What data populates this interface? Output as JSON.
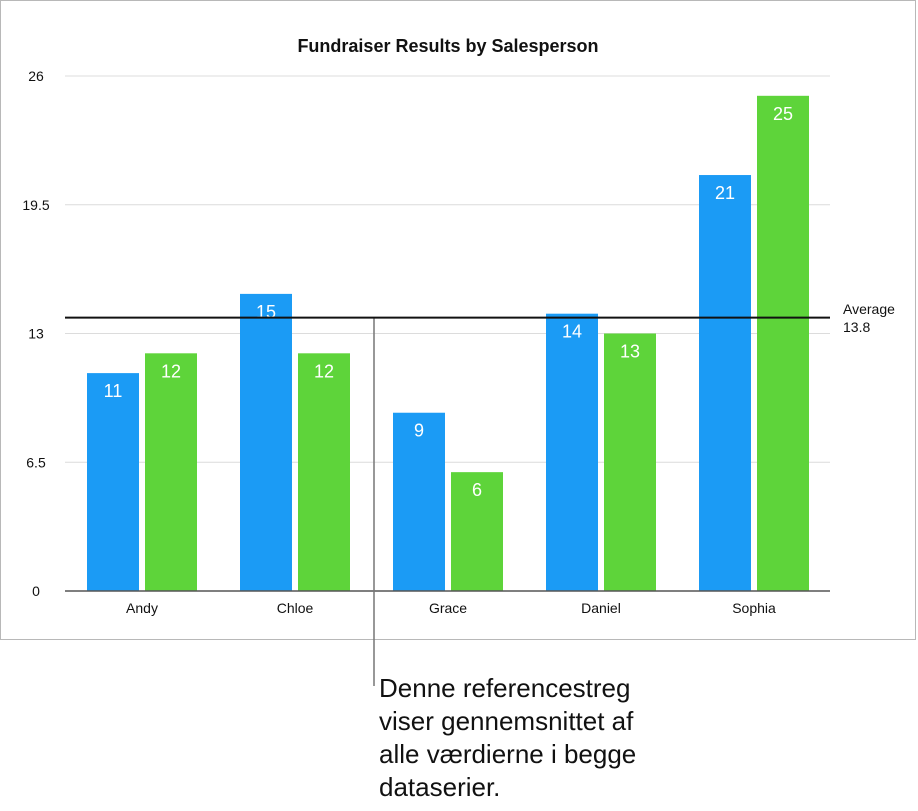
{
  "chart_data": {
    "type": "bar",
    "title": "Fundraiser Results by Salesperson",
    "categories": [
      "Andy",
      "Chloe",
      "Grace",
      "Daniel",
      "Sophia"
    ],
    "series": [
      {
        "values": [
          11,
          15,
          9,
          14,
          21
        ],
        "color": "#1b9bf5"
      },
      {
        "values": [
          12,
          12,
          6,
          13,
          25
        ],
        "color": "#5ed43a"
      }
    ],
    "ylim": [
      0,
      26
    ],
    "yticks": [
      "0",
      "6.5",
      "13",
      "19.5",
      "26"
    ],
    "grid": true,
    "reference_line": {
      "label": "Average",
      "value": 13.8,
      "value_label": "13.8"
    },
    "xlabel": "",
    "ylabel": ""
  },
  "callout": {
    "lines": [
      "Denne referencestreg",
      "viser gennemsnittet af",
      "alle værdierne i begge",
      "dataserier."
    ]
  }
}
